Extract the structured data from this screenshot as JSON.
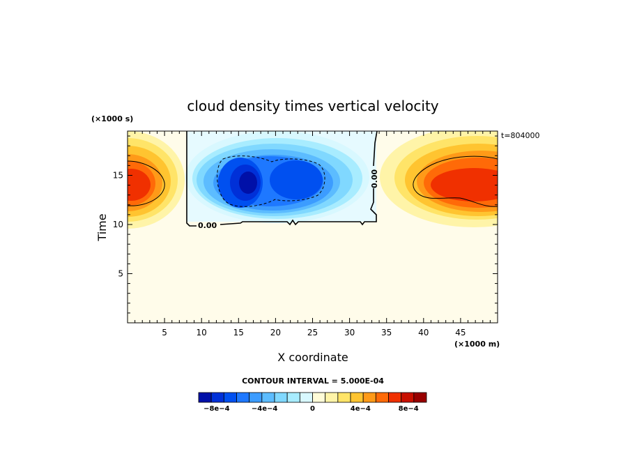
{
  "chart_data": {
    "type": "heatmap",
    "title": "cloud density times vertical velocity",
    "xlabel": "X coordinate",
    "ylabel": "Time",
    "x_unit": "(×1000 m)",
    "y_unit": "(×1000 s)",
    "time_stamp": "t=804000",
    "xlim": [
      0,
      50
    ],
    "ylim": [
      0,
      19.5
    ],
    "x_ticks": [
      5,
      10,
      15,
      20,
      25,
      30,
      35,
      40,
      45
    ],
    "y_ticks": [
      5,
      10,
      15
    ],
    "contour_interval_text": "CONTOUR INTERVAL = 5.000E-04",
    "contour_label": "0.00",
    "colorbar": {
      "colors": [
        "#0010a8",
        "#0030d8",
        "#0050f0",
        "#1e78ff",
        "#3c9cff",
        "#5cbcff",
        "#80d8ff",
        "#a8ecff",
        "#d8f8ff",
        "#fffcd8",
        "#fff4a8",
        "#ffe468",
        "#ffc430",
        "#ff9a18",
        "#ff6a08",
        "#f03000",
        "#c81000",
        "#980000"
      ],
      "labels": [
        "−8e−4",
        "−4e−4",
        "0",
        "4e−4",
        "8e−4"
      ],
      "label_values": [
        -0.0008,
        -0.0004,
        0,
        0.0004,
        0.0008
      ],
      "min": -0.00095,
      "max": 0.00095
    },
    "features": [
      {
        "name": "updraft-left",
        "x": 0.5,
        "y": 14.5,
        "peak": 0.0008
      },
      {
        "name": "updraft-right",
        "x": 46,
        "y": 14.8,
        "peak": 0.0008
      },
      {
        "name": "downdraft-core-1",
        "x": 16.5,
        "y": 14.5,
        "peak": -0.0008
      },
      {
        "name": "downdraft-core-2",
        "x": 22.5,
        "y": 15,
        "peak": -0.0006
      }
    ]
  }
}
